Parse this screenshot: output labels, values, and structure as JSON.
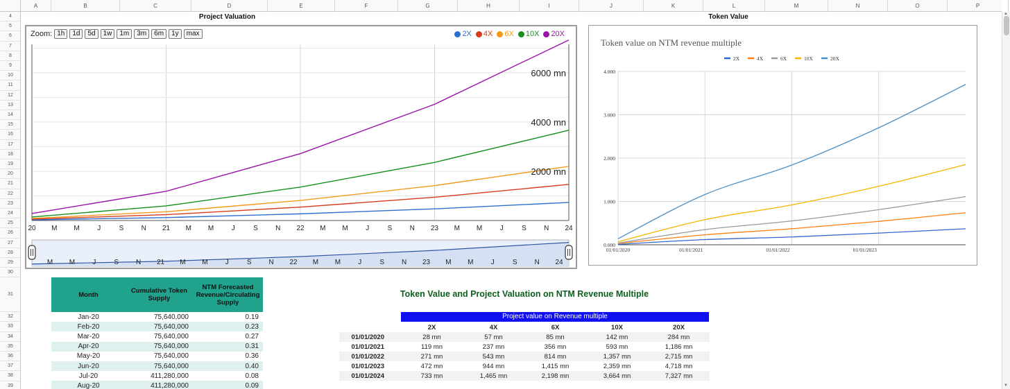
{
  "spreadsheet": {
    "columns": [
      "A",
      "B",
      "C",
      "D",
      "E",
      "F",
      "G",
      "H",
      "I",
      "J",
      "K",
      "L",
      "M",
      "N",
      "O",
      "P"
    ],
    "rows": [
      "4",
      "5",
      "6",
      "7",
      "8",
      "9",
      "10",
      "11",
      "12",
      "13",
      "14",
      "15",
      "16",
      "17",
      "18",
      "19",
      "20",
      "21",
      "22",
      "23",
      "24",
      "25",
      "26",
      "27",
      "28",
      "29",
      "30",
      "31",
      "32",
      "33",
      "34",
      "35",
      "36",
      "37",
      "38",
      "39"
    ]
  },
  "titles": {
    "project_valuation": "Project Valuation",
    "token_value": "Token Value",
    "multiple_section": "Token Value and Project Valuation on NTM Revenue Multiple"
  },
  "valuation_chart": {
    "zoom_label": "Zoom:",
    "zoom_buttons": [
      "1h",
      "1d",
      "5d",
      "1w",
      "1m",
      "3m",
      "6m",
      "1y",
      "max"
    ],
    "legend": [
      {
        "label": "2X",
        "color": "#2f6fcf"
      },
      {
        "label": "4X",
        "color": "#d63c1c"
      },
      {
        "label": "6X",
        "color": "#f39a1b"
      },
      {
        "label": "10X",
        "color": "#14901e"
      },
      {
        "label": "20X",
        "color": "#9a12a8"
      }
    ],
    "y_labels": [
      "6000 mn",
      "4000 mn",
      "2000 mn"
    ],
    "x_labels": [
      "20",
      "M",
      "M",
      "J",
      "S",
      "N",
      "21",
      "M",
      "M",
      "J",
      "S",
      "N",
      "22",
      "M",
      "M",
      "J",
      "S",
      "N",
      "23",
      "M",
      "M",
      "J",
      "S",
      "N",
      "24"
    ],
    "range_labels": [
      "M",
      "M",
      "J",
      "S",
      "N",
      "21",
      "M",
      "M",
      "J",
      "S",
      "N",
      "22",
      "M",
      "M",
      "J",
      "S",
      "N",
      "23",
      "M",
      "M",
      "J",
      "S",
      "N",
      "24"
    ]
  },
  "chart_data": [
    {
      "type": "line",
      "x": [
        "01/01/2020",
        "01/01/2021",
        "01/01/2022",
        "01/01/2023",
        "01/01/2024"
      ],
      "series": [
        {
          "name": "2X",
          "values": [
            28,
            119,
            271,
            472,
            733
          ]
        },
        {
          "name": "4X",
          "values": [
            57,
            237,
            543,
            944,
            1465
          ]
        },
        {
          "name": "6X",
          "values": [
            85,
            356,
            814,
            1415,
            2198
          ]
        },
        {
          "name": "10X",
          "values": [
            142,
            593,
            1357,
            2359,
            3664
          ]
        },
        {
          "name": "20X",
          "values": [
            284,
            1186,
            2715,
            4718,
            7327
          ]
        }
      ],
      "ylim": [
        0,
        7600
      ]
    },
    {
      "type": "line",
      "title": "Token value on NTM revenue multiple",
      "x_ticks": [
        "01/01/2020",
        "01/01/2021",
        "01/01/2022",
        "01/01/2023"
      ],
      "y_ticks": [
        "0.000",
        "1.000",
        "2.000",
        "3.000",
        "4.000"
      ],
      "ylim": [
        0,
        4
      ],
      "legend_position": "top",
      "series": [
        {
          "name": "2X",
          "color": "#3366cc",
          "values": [
            0.01,
            0.12,
            0.18,
            0.27,
            0.37
          ]
        },
        {
          "name": "4X",
          "color": "#ff7f0e",
          "values": [
            0.03,
            0.23,
            0.37,
            0.54,
            0.74
          ]
        },
        {
          "name": "6X",
          "color": "#999999",
          "values": [
            0.04,
            0.35,
            0.55,
            0.81,
            1.11
          ]
        },
        {
          "name": "10X",
          "color": "#f4b400",
          "values": [
            0.07,
            0.58,
            0.92,
            1.35,
            1.85
          ]
        },
        {
          "name": "20X",
          "color": "#4a90c8",
          "values": [
            0.14,
            1.16,
            1.84,
            2.7,
            3.7
          ]
        }
      ]
    }
  ],
  "data_table": {
    "headers": [
      "Month",
      "Cumulative Token Supply",
      "NTM Forecasted Revenue/Circulating Supply"
    ],
    "rows": [
      [
        "Jan-20",
        "75,640,000",
        "0.19"
      ],
      [
        "Feb-20",
        "75,640,000",
        "0.23"
      ],
      [
        "Mar-20",
        "75,640,000",
        "0.27"
      ],
      [
        "Apr-20",
        "75,640,000",
        "0.31"
      ],
      [
        "May-20",
        "75,640,000",
        "0.36"
      ],
      [
        "Jun-20",
        "75,640,000",
        "0.40"
      ],
      [
        "Jul-20",
        "411,280,000",
        "0.08"
      ],
      [
        "Aug-20",
        "411,280,000",
        "0.09"
      ]
    ]
  },
  "project_value_table": {
    "header": "Project value on Revenue multiple",
    "columns": [
      "2X",
      "4X",
      "6X",
      "10X",
      "20X"
    ],
    "rows": [
      [
        "01/01/2020",
        "28 mn",
        "57 mn",
        "85 mn",
        "142 mn",
        "284 mn"
      ],
      [
        "01/01/2021",
        "119 mn",
        "237 mn",
        "356 mn",
        "593 mn",
        "1,186 mn"
      ],
      [
        "01/01/2022",
        "271 mn",
        "543 mn",
        "814 mn",
        "1,357 mn",
        "2,715 mn"
      ],
      [
        "01/01/2023",
        "472 mn",
        "944 mn",
        "1,415 mn",
        "2,359 mn",
        "4,718 mn"
      ],
      [
        "01/01/2024",
        "733 mn",
        "1,465 mn",
        "2,198 mn",
        "3,664 mn",
        "7,327 mn"
      ]
    ]
  }
}
